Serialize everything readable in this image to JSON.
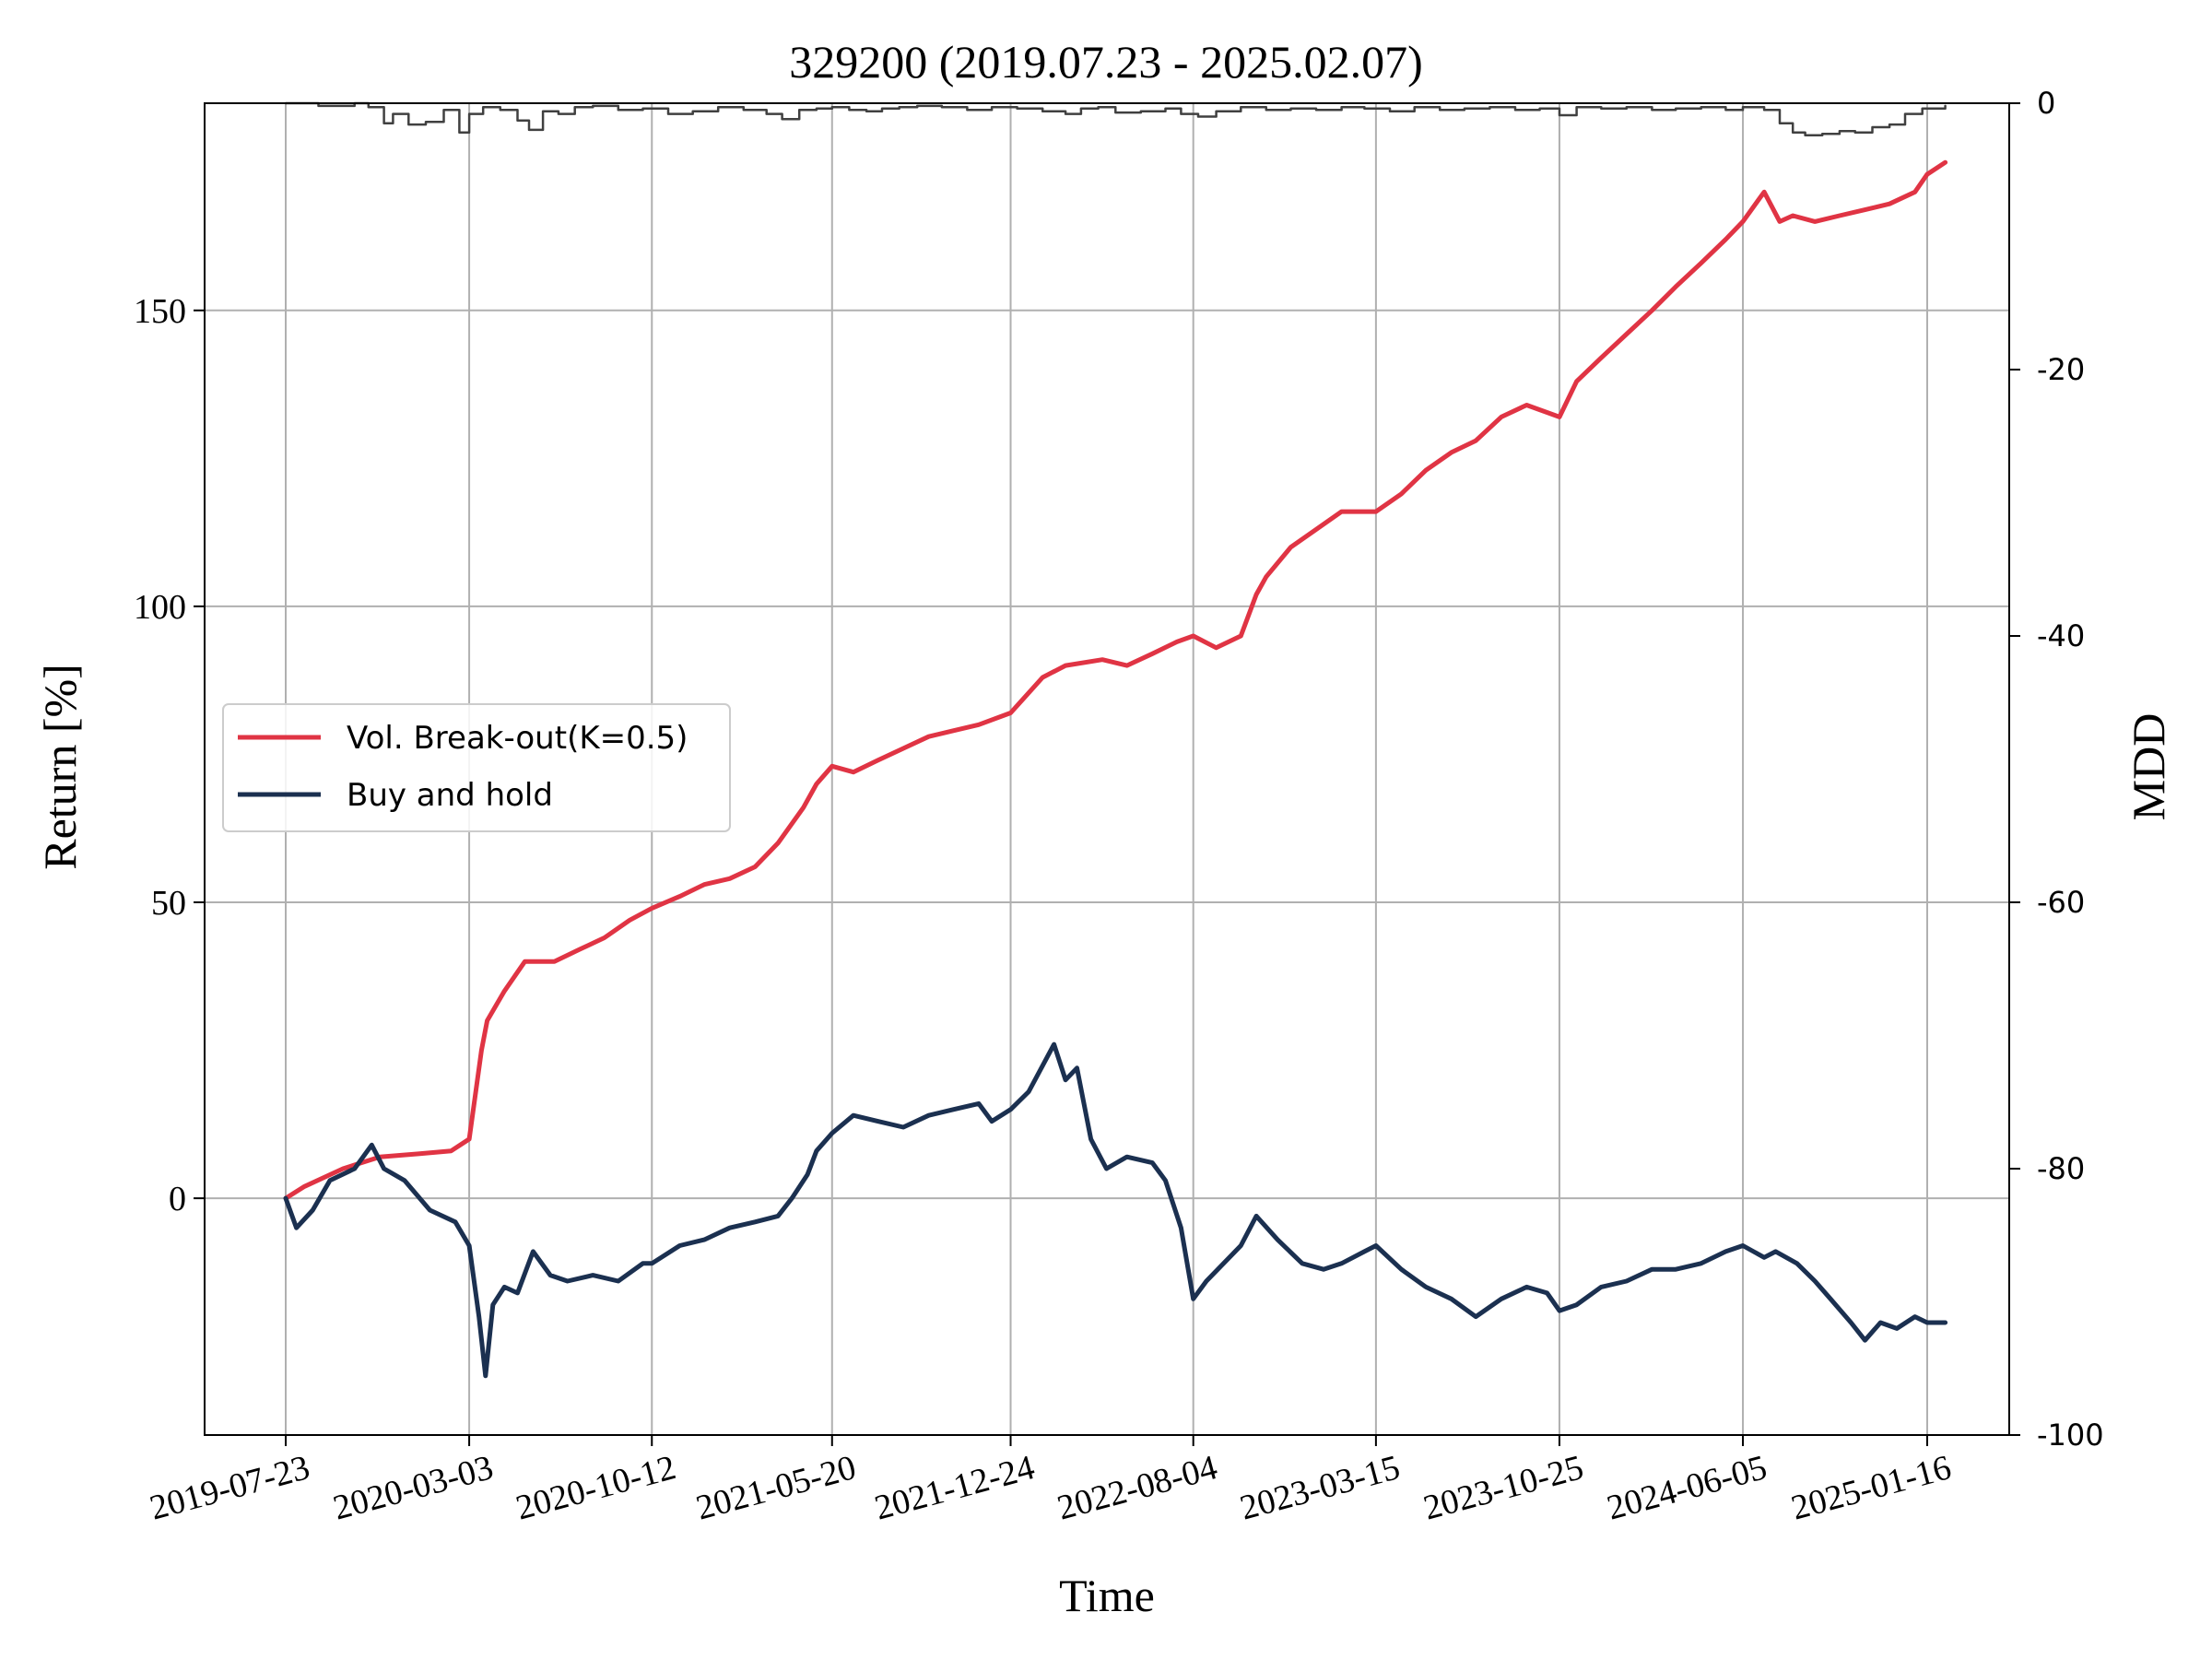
{
  "chart_data": {
    "type": "line",
    "title": "329200 (2019.07.23 - 2025.02.07)",
    "xlabel": "Time",
    "ylabel": "Return [%]",
    "y2label": "MDD",
    "x_range": [
      "2019-07-23",
      "2025-02-07"
    ],
    "ylim": [
      -40,
      185
    ],
    "y2lim": [
      -100,
      0
    ],
    "x_ticks": [
      "2019-07-23",
      "2020-03-03",
      "2020-10-12",
      "2021-05-20",
      "2021-12-24",
      "2022-08-04",
      "2023-03-15",
      "2023-10-25",
      "2024-06-05",
      "2025-01-16"
    ],
    "y_ticks": [
      "0",
      "50",
      "100",
      "150"
    ],
    "y2_ticks": [
      "0",
      "-20",
      "-40",
      "-60",
      "-80",
      "-100"
    ],
    "grid": true,
    "legend_position": "center-left",
    "series": [
      {
        "name": "Vol. Break-out(K=0.5)",
        "axis": "left",
        "color": "#e03444",
        "x": [
          "2019-07-23",
          "2019-08-15",
          "2019-10-01",
          "2019-11-15",
          "2020-01-01",
          "2020-02-10",
          "2020-03-03",
          "2020-03-18",
          "2020-03-25",
          "2020-04-15",
          "2020-05-10",
          "2020-06-15",
          "2020-07-15",
          "2020-08-15",
          "2020-09-15",
          "2020-10-12",
          "2020-11-15",
          "2020-12-15",
          "2021-01-15",
          "2021-02-15",
          "2021-03-15",
          "2021-04-15",
          "2021-05-01",
          "2021-05-20",
          "2021-06-15",
          "2021-07-15",
          "2021-08-15",
          "2021-09-15",
          "2021-10-15",
          "2021-11-15",
          "2021-12-24",
          "2022-02-01",
          "2022-03-01",
          "2022-04-15",
          "2022-05-15",
          "2022-06-15",
          "2022-07-15",
          "2022-08-04",
          "2022-09-01",
          "2022-10-01",
          "2022-10-20",
          "2022-11-01",
          "2022-12-01",
          "2023-01-01",
          "2023-02-01",
          "2023-03-15",
          "2023-04-15",
          "2023-05-15",
          "2023-06-15",
          "2023-07-15",
          "2023-08-15",
          "2023-09-15",
          "2023-10-25",
          "2023-11-15",
          "2023-12-15",
          "2024-01-15",
          "2024-02-15",
          "2024-03-15",
          "2024-04-15",
          "2024-05-15",
          "2024-06-05",
          "2024-07-01",
          "2024-07-20",
          "2024-08-05",
          "2024-09-01",
          "2024-10-01",
          "2024-11-01",
          "2024-12-01",
          "2025-01-01",
          "2025-01-16",
          "2025-02-07"
        ],
        "values": [
          0,
          2,
          5,
          7,
          7.5,
          8,
          10,
          25,
          30,
          35,
          40,
          40,
          42,
          44,
          47,
          49,
          51,
          53,
          54,
          56,
          60,
          66,
          70,
          73,
          72,
          74,
          76,
          78,
          79,
          80,
          82,
          88,
          90,
          91,
          90,
          92,
          94,
          95,
          93,
          95,
          102,
          105,
          110,
          113,
          116,
          116,
          119,
          123,
          126,
          128,
          132,
          134,
          132,
          138,
          142,
          146,
          150,
          154,
          158,
          162,
          165,
          170,
          165,
          166,
          165,
          166,
          167,
          168,
          170,
          173,
          175
        ]
      },
      {
        "name": "Buy and hold",
        "axis": "left",
        "color": "#1b3050",
        "x": [
          "2019-07-23",
          "2019-08-05",
          "2019-08-25",
          "2019-09-15",
          "2019-10-15",
          "2019-11-05",
          "2019-11-20",
          "2019-12-15",
          "2020-01-15",
          "2020-02-15",
          "2020-03-03",
          "2020-03-15",
          "2020-03-23",
          "2020-04-01",
          "2020-04-15",
          "2020-05-01",
          "2020-05-20",
          "2020-06-10",
          "2020-07-01",
          "2020-08-01",
          "2020-09-01",
          "2020-10-01",
          "2020-10-12",
          "2020-11-15",
          "2020-12-15",
          "2021-01-15",
          "2021-02-15",
          "2021-03-15",
          "2021-04-01",
          "2021-04-20",
          "2021-05-01",
          "2021-05-20",
          "2021-06-15",
          "2021-07-15",
          "2021-08-15",
          "2021-09-15",
          "2021-10-15",
          "2021-11-15",
          "2021-12-01",
          "2021-12-24",
          "2022-01-15",
          "2022-02-15",
          "2022-03-01",
          "2022-03-15",
          "2022-04-01",
          "2022-04-20",
          "2022-05-15",
          "2022-06-15",
          "2022-07-01",
          "2022-07-20",
          "2022-08-04",
          "2022-08-20",
          "2022-09-10",
          "2022-10-01",
          "2022-10-20",
          "2022-11-15",
          "2022-12-15",
          "2023-01-10",
          "2023-02-01",
          "2023-03-01",
          "2023-03-15",
          "2023-04-15",
          "2023-05-15",
          "2023-06-15",
          "2023-07-15",
          "2023-08-15",
          "2023-09-15",
          "2023-10-10",
          "2023-10-25",
          "2023-11-15",
          "2023-12-15",
          "2024-01-15",
          "2024-02-15",
          "2024-03-15",
          "2024-04-15",
          "2024-05-15",
          "2024-06-05",
          "2024-07-01",
          "2024-07-15",
          "2024-08-10",
          "2024-09-01",
          "2024-09-20",
          "2024-10-15",
          "2024-11-01",
          "2024-11-20",
          "2024-12-10",
          "2025-01-01",
          "2025-01-16",
          "2025-02-07"
        ],
        "values": [
          0,
          -5,
          -2,
          3,
          5,
          9,
          5,
          3,
          -2,
          -4,
          -8,
          -20,
          -30,
          -18,
          -15,
          -16,
          -9,
          -13,
          -14,
          -13,
          -14,
          -11,
          -11,
          -8,
          -7,
          -5,
          -4,
          -3,
          0,
          4,
          8,
          11,
          14,
          13,
          12,
          14,
          15,
          16,
          13,
          15,
          18,
          26,
          20,
          22,
          10,
          5,
          7,
          6,
          3,
          -5,
          -17,
          -14,
          -11,
          -8,
          -3,
          -7,
          -11,
          -12,
          -11,
          -9,
          -8,
          -12,
          -15,
          -17,
          -20,
          -17,
          -15,
          -16,
          -19,
          -18,
          -15,
          -14,
          -12,
          -12,
          -11,
          -9,
          -8,
          -10,
          -9,
          -11,
          -14,
          -17,
          -21,
          -24,
          -21,
          -22,
          -20,
          -21,
          -21
        ],
        "_pad": null
      },
      {
        "name": "",
        "axis": "right",
        "color": "#404040",
        "x": [
          "2019-07-23",
          "2019-09-01",
          "2019-10-15",
          "2019-11-01",
          "2019-11-20",
          "2019-12-01",
          "2019-12-20",
          "2020-01-10",
          "2020-02-01",
          "2020-02-20",
          "2020-03-03",
          "2020-03-20",
          "2020-04-10",
          "2020-05-01",
          "2020-05-15",
          "2020-06-01",
          "2020-06-20",
          "2020-07-10",
          "2020-08-01",
          "2020-09-01",
          "2020-10-01",
          "2020-11-01",
          "2020-12-01",
          "2021-01-01",
          "2021-02-01",
          "2021-03-01",
          "2021-03-20",
          "2021-04-10",
          "2021-05-01",
          "2021-05-20",
          "2021-06-10",
          "2021-07-01",
          "2021-07-20",
          "2021-08-10",
          "2021-09-01",
          "2021-10-01",
          "2021-11-01",
          "2021-12-01",
          "2022-01-01",
          "2022-02-01",
          "2022-03-01",
          "2022-03-20",
          "2022-04-10",
          "2022-05-01",
          "2022-06-01",
          "2022-07-01",
          "2022-07-20",
          "2022-08-10",
          "2022-09-01",
          "2022-10-01",
          "2022-11-01",
          "2022-12-01",
          "2023-01-01",
          "2023-02-01",
          "2023-03-01",
          "2023-04-01",
          "2023-05-01",
          "2023-06-01",
          "2023-07-01",
          "2023-08-01",
          "2023-09-01",
          "2023-10-01",
          "2023-10-25",
          "2023-11-15",
          "2023-12-15",
          "2024-01-15",
          "2024-02-15",
          "2024-03-15",
          "2024-04-15",
          "2024-05-15",
          "2024-06-05",
          "2024-07-01",
          "2024-07-20",
          "2024-08-05",
          "2024-08-20",
          "2024-09-10",
          "2024-10-01",
          "2024-10-20",
          "2024-11-10",
          "2024-12-01",
          "2024-12-20",
          "2025-01-10",
          "2025-02-07"
        ],
        "values": [
          0,
          -0.2,
          0,
          -0.3,
          -1.5,
          -0.8,
          -1.6,
          -1.4,
          -0.5,
          -2.2,
          -0.8,
          -0.3,
          -0.5,
          -1.3,
          -2.0,
          -0.6,
          -0.8,
          -0.3,
          -0.2,
          -0.5,
          -0.4,
          -0.8,
          -0.6,
          -0.3,
          -0.5,
          -0.8,
          -1.2,
          -0.5,
          -0.4,
          -0.3,
          -0.5,
          -0.6,
          -0.4,
          -0.3,
          -0.2,
          -0.3,
          -0.5,
          -0.3,
          -0.4,
          -0.6,
          -0.8,
          -0.4,
          -0.3,
          -0.7,
          -0.6,
          -0.4,
          -0.8,
          -1.0,
          -0.6,
          -0.3,
          -0.5,
          -0.4,
          -0.5,
          -0.3,
          -0.4,
          -0.6,
          -0.3,
          -0.5,
          -0.4,
          -0.3,
          -0.5,
          -0.4,
          -0.9,
          -0.3,
          -0.4,
          -0.3,
          -0.5,
          -0.4,
          -0.3,
          -0.5,
          -0.3,
          -0.5,
          -1.5,
          -2.2,
          -2.4,
          -2.3,
          -2.1,
          -2.2,
          -1.8,
          -1.6,
          -0.8,
          -0.4,
          -0.2
        ]
      }
    ]
  }
}
